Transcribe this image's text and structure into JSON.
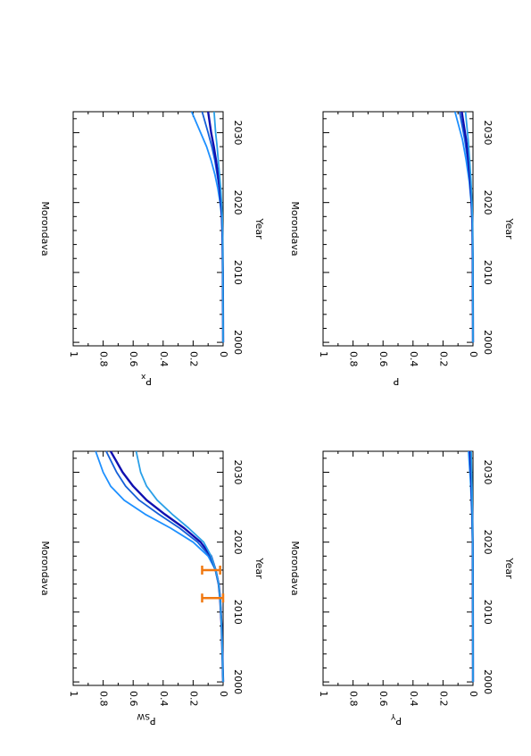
{
  "colors": {
    "axis": "#000000",
    "series": [
      "#1e90ff",
      "#1560d8",
      "#1010b0",
      "#2aa0e8"
    ],
    "errorbar": "#f07810"
  },
  "chart_data": [
    {
      "id": "psw",
      "type": "line",
      "title": "Morondava",
      "xlabel": "Year",
      "ylabel": "P",
      "ylabel_sub": "SW",
      "xlim": [
        1999.5,
        2033
      ],
      "ylim": [
        0,
        1
      ],
      "xticks": [
        2000,
        2010,
        2020,
        2030
      ],
      "yticks": [
        0,
        0.2,
        0.4,
        0.6,
        0.8,
        1
      ],
      "ytick_labels": [
        "0",
        "0.2",
        "0.4",
        "0.6",
        "0.8",
        "1"
      ],
      "x": [
        2000,
        2004,
        2008,
        2012,
        2014,
        2016,
        2018,
        2020,
        2022,
        2024,
        2026,
        2028,
        2030,
        2033
      ],
      "series": [
        {
          "values": [
            0.0,
            0.005,
            0.01,
            0.02,
            0.03,
            0.05,
            0.1,
            0.2,
            0.35,
            0.52,
            0.66,
            0.75,
            0.8,
            0.85
          ]
        },
        {
          "values": [
            0.0,
            0.005,
            0.01,
            0.02,
            0.03,
            0.05,
            0.09,
            0.17,
            0.29,
            0.43,
            0.56,
            0.65,
            0.71,
            0.78
          ]
        },
        {
          "values": [
            0.0,
            0.005,
            0.01,
            0.02,
            0.03,
            0.05,
            0.08,
            0.15,
            0.26,
            0.39,
            0.51,
            0.6,
            0.67,
            0.75
          ]
        },
        {
          "values": [
            0.0,
            0.005,
            0.01,
            0.02,
            0.03,
            0.05,
            0.08,
            0.13,
            0.23,
            0.34,
            0.44,
            0.51,
            0.55,
            0.58
          ]
        }
      ],
      "errorbars": [
        {
          "x": 2012,
          "low": 0.0,
          "high": 0.14
        },
        {
          "x": 2016,
          "low": 0.02,
          "high": 0.14
        }
      ]
    },
    {
      "id": "px",
      "type": "line",
      "title": "Morondava",
      "xlabel": "Year",
      "ylabel": "P",
      "ylabel_sub": "x",
      "xlim": [
        1999.5,
        2033
      ],
      "ylim": [
        0,
        1
      ],
      "xticks": [
        2000,
        2010,
        2020,
        2030
      ],
      "yticks": [
        0,
        0.2,
        0.4,
        0.6,
        0.8,
        1
      ],
      "ytick_labels": [
        "0",
        "0.2",
        "0.4",
        "0.6",
        "0.8",
        "1"
      ],
      "x": [
        2000,
        2010,
        2015,
        2018,
        2020,
        2022,
        2024,
        2026,
        2028,
        2030,
        2033
      ],
      "series": [
        {
          "values": [
            0,
            0.002,
            0.005,
            0.01,
            0.02,
            0.035,
            0.055,
            0.08,
            0.11,
            0.15,
            0.21
          ]
        },
        {
          "values": [
            0,
            0.002,
            0.004,
            0.008,
            0.015,
            0.025,
            0.04,
            0.055,
            0.075,
            0.1,
            0.14
          ]
        },
        {
          "values": [
            0,
            0.002,
            0.004,
            0.008,
            0.014,
            0.022,
            0.034,
            0.047,
            0.062,
            0.08,
            0.1
          ]
        },
        {
          "values": [
            0,
            0.002,
            0.003,
            0.006,
            0.01,
            0.016,
            0.024,
            0.032,
            0.04,
            0.05,
            0.06
          ]
        }
      ]
    },
    {
      "id": "py",
      "type": "line",
      "title": "Morondava",
      "xlabel": "Year",
      "ylabel": "P",
      "ylabel_sub": "Y",
      "xlim": [
        1999.5,
        2033
      ],
      "ylim": [
        0,
        1
      ],
      "xticks": [
        2000,
        2010,
        2020,
        2030
      ],
      "yticks": [
        0,
        0.2,
        0.4,
        0.6,
        0.8,
        1
      ],
      "ytick_labels": [
        "0",
        "0.2",
        "0.4",
        "0.6",
        "0.8",
        "1"
      ],
      "x": [
        2000,
        2015,
        2020,
        2024,
        2028,
        2033
      ],
      "series": [
        {
          "values": [
            0,
            0.001,
            0.003,
            0.008,
            0.015,
            0.03
          ]
        },
        {
          "values": [
            0,
            0.001,
            0.002,
            0.006,
            0.011,
            0.022
          ]
        },
        {
          "values": [
            0,
            0.001,
            0.002,
            0.005,
            0.009,
            0.017
          ]
        },
        {
          "values": [
            0,
            0.001,
            0.002,
            0.004,
            0.007,
            0.012
          ]
        }
      ]
    },
    {
      "id": "p",
      "type": "line",
      "title": "Morondava",
      "xlabel": "Year",
      "ylabel": "P",
      "ylabel_sub": "",
      "xlim": [
        1999.5,
        2033
      ],
      "ylim": [
        0,
        1
      ],
      "xticks": [
        2000,
        2010,
        2020,
        2030
      ],
      "yticks": [
        0,
        0.2,
        0.4,
        0.6,
        0.8,
        1
      ],
      "ytick_labels": [
        "0",
        "0.2",
        "0.4",
        "0.6",
        "0.8",
        "1"
      ],
      "x": [
        2000,
        2012,
        2017,
        2020,
        2023,
        2026,
        2029,
        2033
      ],
      "series": [
        {
          "values": [
            0,
            0.002,
            0.005,
            0.012,
            0.025,
            0.045,
            0.07,
            0.12
          ]
        },
        {
          "values": [
            0,
            0.002,
            0.004,
            0.01,
            0.02,
            0.035,
            0.055,
            0.09
          ]
        },
        {
          "values": [
            0,
            0.002,
            0.004,
            0.009,
            0.017,
            0.03,
            0.046,
            0.075
          ]
        },
        {
          "values": [
            0,
            0.001,
            0.003,
            0.007,
            0.013,
            0.022,
            0.032,
            0.05
          ]
        }
      ]
    }
  ]
}
